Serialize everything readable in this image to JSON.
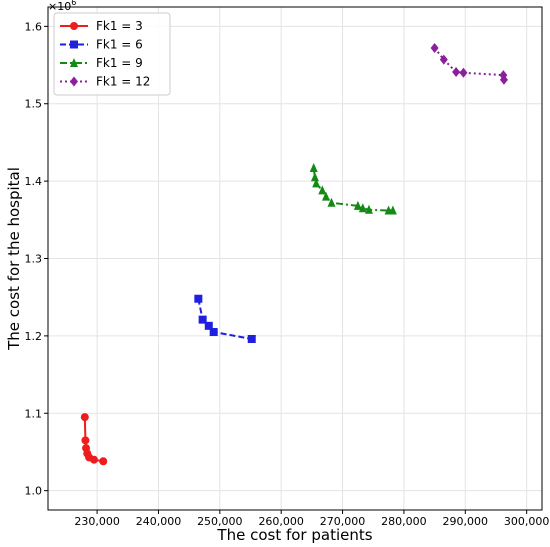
{
  "chart_data": {
    "type": "line",
    "xlabel": "The cost for patients",
    "ylabel": "The cost for the hospital",
    "y_multiplier": {
      "base": "×10",
      "exp": "6"
    },
    "xlim": [
      222000,
      302500
    ],
    "ylim": [
      0.975,
      1.625
    ],
    "x_ticks": [
      230000,
      240000,
      250000,
      260000,
      270000,
      280000,
      290000,
      300000
    ],
    "x_tick_labels": [
      "230,000",
      "240,000",
      "250,000",
      "260,000",
      "270,000",
      "280,000",
      "290,000",
      "300,000"
    ],
    "y_ticks": [
      1.0,
      1.1,
      1.2,
      1.3,
      1.4,
      1.5,
      1.6
    ],
    "y_tick_labels": [
      "1.0",
      "1.1",
      "1.2",
      "1.3",
      "1.4",
      "1.5",
      "1.6"
    ],
    "grid": true,
    "legend_position": "top-left",
    "series": [
      {
        "name": "Fk1 = 3",
        "color": "#ee1c1c",
        "marker": "circle",
        "linestyle": "solid",
        "points": [
          [
            228000,
            1.095
          ],
          [
            228100,
            1.065
          ],
          [
            228200,
            1.055
          ],
          [
            228400,
            1.048
          ],
          [
            228700,
            1.043
          ],
          [
            229500,
            1.04
          ],
          [
            231000,
            1.038
          ]
        ]
      },
      {
        "name": "Fk1 = 6",
        "color": "#1f1fe0",
        "marker": "square",
        "linestyle": "dashed",
        "points": [
          [
            246500,
            1.248
          ],
          [
            247200,
            1.221
          ],
          [
            248200,
            1.213
          ],
          [
            249000,
            1.205
          ],
          [
            255200,
            1.196
          ]
        ]
      },
      {
        "name": "Fk1 = 9",
        "color": "#138a13",
        "marker": "triangle",
        "linestyle": "dashdot",
        "points": [
          [
            265300,
            1.417
          ],
          [
            265500,
            1.405
          ],
          [
            265700,
            1.397
          ],
          [
            266700,
            1.388
          ],
          [
            267300,
            1.38
          ],
          [
            268200,
            1.372
          ],
          [
            272500,
            1.368
          ],
          [
            273300,
            1.365
          ],
          [
            274300,
            1.363
          ],
          [
            277500,
            1.362
          ],
          [
            278200,
            1.362
          ]
        ]
      },
      {
        "name": "Fk1 = 12",
        "color": "#8b1f9c",
        "marker": "diamond",
        "linestyle": "dotted",
        "points": [
          [
            285000,
            1.572
          ],
          [
            286500,
            1.557
          ],
          [
            288500,
            1.541
          ],
          [
            289700,
            1.54
          ],
          [
            296200,
            1.537
          ],
          [
            296300,
            1.531
          ]
        ]
      }
    ]
  }
}
